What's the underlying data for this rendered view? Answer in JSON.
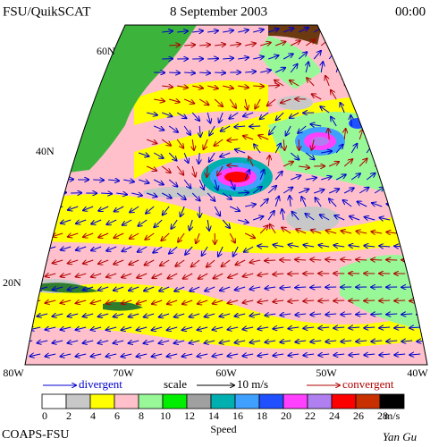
{
  "header": {
    "title": "FSU/QuikSCAT",
    "date": "8 September 2003",
    "time": "00:00"
  },
  "map": {
    "lat_labels": [
      "60N",
      "40N",
      "20N"
    ],
    "lon_labels": [
      "80W",
      "70W",
      "60W",
      "50W",
      "40W"
    ]
  },
  "legend": {
    "divergent": "divergent",
    "scale": "scale",
    "scale_value": "10 m/s",
    "convergent": "convergent",
    "colorbar": {
      "ticks": [
        0,
        2,
        4,
        6,
        8,
        10,
        12,
        14,
        16,
        18,
        20,
        22,
        24,
        26,
        28
      ],
      "colors": [
        "#ffffff",
        "#c8c8c8",
        "#ffff00",
        "#ffc0cb",
        "#98f898",
        "#00ee00",
        "#a0a0a0",
        "#00b0b0",
        "#40a0ff",
        "#2050ff",
        "#ff40ff",
        "#b080f0",
        "#ff0000",
        "#c83000",
        "#000000"
      ],
      "unit": "m/s",
      "label": "Speed"
    }
  },
  "footer": {
    "credit": "COAPS-FSU",
    "author": "Yan Gu"
  }
}
